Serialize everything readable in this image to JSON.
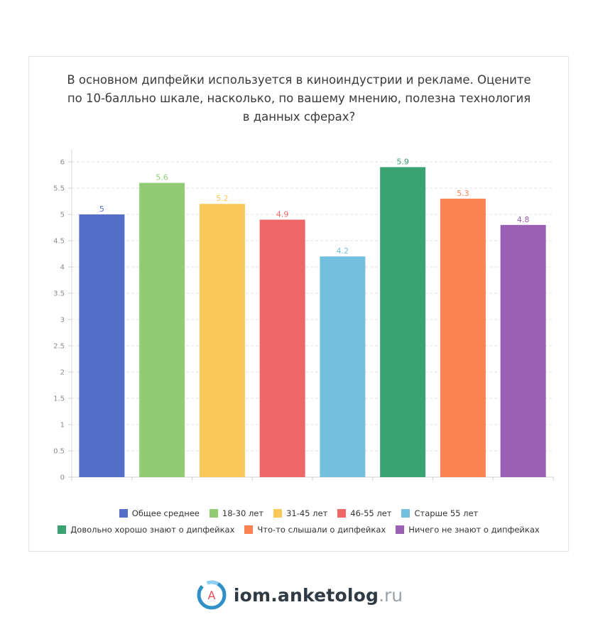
{
  "chart_data": {
    "type": "bar",
    "title": "В основном дипфейки используется в киноиндустрии и рекламе. Оцените по 10-балльно шкале, насколько, по вашему мнению, полезна технология в данных сферах?",
    "title_lines": [
      "В основном дипфейки используется в киноиндустрии и рекламе. Оцените",
      "по 10-балльно шкале, насколько, по вашему мнению, полезна технология",
      "в данных сферах?"
    ],
    "series": [
      {
        "name": "Общее среднее",
        "value": 5,
        "label": "5",
        "color": "#5470c6"
      },
      {
        "name": "18-30 лет",
        "value": 5.6,
        "label": "5.6",
        "color": "#91cc75"
      },
      {
        "name": "31-45 лет",
        "value": 5.2,
        "label": "5.2",
        "color": "#fac858"
      },
      {
        "name": "46-55 лет",
        "value": 4.9,
        "label": "4.9",
        "color": "#ee6666"
      },
      {
        "name": "Старше 55 лет",
        "value": 4.2,
        "label": "4.2",
        "color": "#73c0de"
      },
      {
        "name": "Довольно хорошо знают о дипфейках",
        "value": 5.9,
        "label": "5.9",
        "color": "#3ba272"
      },
      {
        "name": "Что-то слышали о дипфейках",
        "value": 5.3,
        "label": "5.3",
        "color": "#fc8452"
      },
      {
        "name": "Ничего не знают о дипфейках",
        "value": 4.8,
        "label": "4.8",
        "color": "#9a60b4"
      }
    ],
    "ylim": [
      0,
      6
    ],
    "yticks": [
      "0",
      "0.5",
      "1",
      "1.5",
      "2",
      "2.5",
      "3",
      "3.5",
      "4",
      "4.5",
      "5",
      "5.5",
      "6"
    ],
    "grid": true,
    "legend_position": "bottom"
  },
  "logo": {
    "brand": "iom.anketolog",
    "tld": ".ru",
    "mark_letter": "A"
  }
}
